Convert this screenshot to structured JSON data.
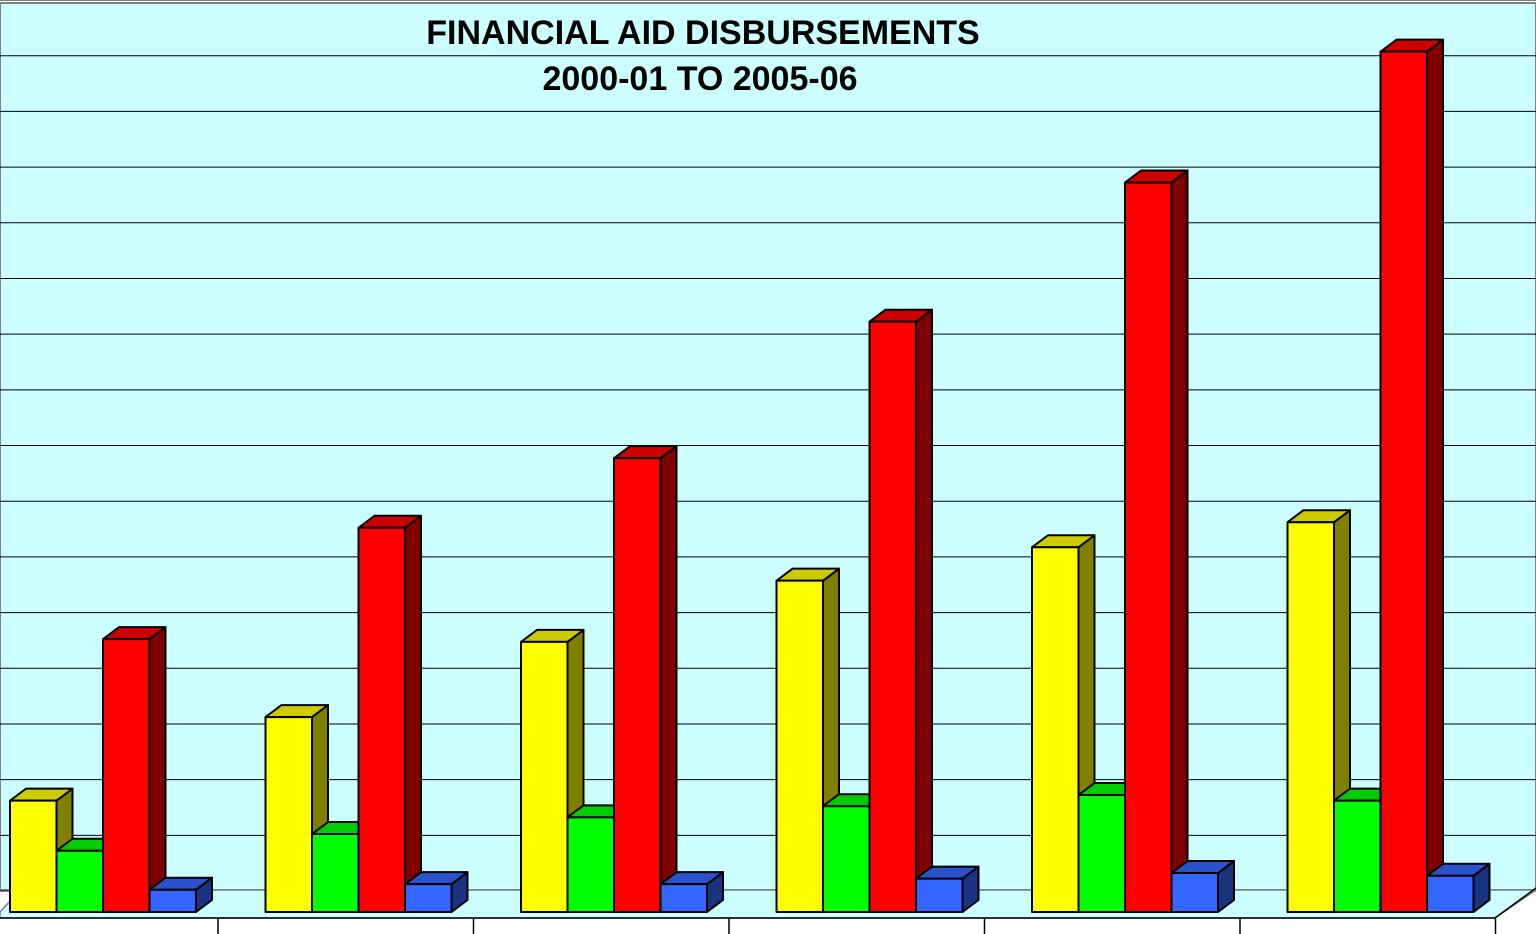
{
  "chart_data": {
    "type": "bar3d",
    "title": "FINANCIAL AID DISBURSEMENTS",
    "subtitle": "2000-01 TO 2005-06",
    "categories": [
      null,
      null,
      null,
      null,
      null,
      null
    ],
    "series": [
      {
        "color": "#ffff00",
        "values": [
          2.0,
          3.5,
          4.85,
          5.95,
          6.55,
          7.0
        ]
      },
      {
        "color": "#00ff00",
        "values": [
          1.1,
          1.4,
          1.7,
          1.9,
          2.1,
          2.0
        ]
      },
      {
        "color": "#ff0000",
        "values": [
          4.9,
          6.9,
          8.15,
          10.6,
          13.1,
          15.45
        ]
      },
      {
        "color": "#3366ff",
        "values": [
          0.4,
          0.5,
          0.5,
          0.6,
          0.7,
          0.65
        ]
      }
    ],
    "ylim": [
      0,
      16
    ],
    "yticks": [
      0,
      1,
      2,
      3,
      4,
      5,
      6,
      7,
      8,
      9,
      10,
      11,
      12,
      13,
      14,
      15,
      16
    ],
    "grid": true
  }
}
